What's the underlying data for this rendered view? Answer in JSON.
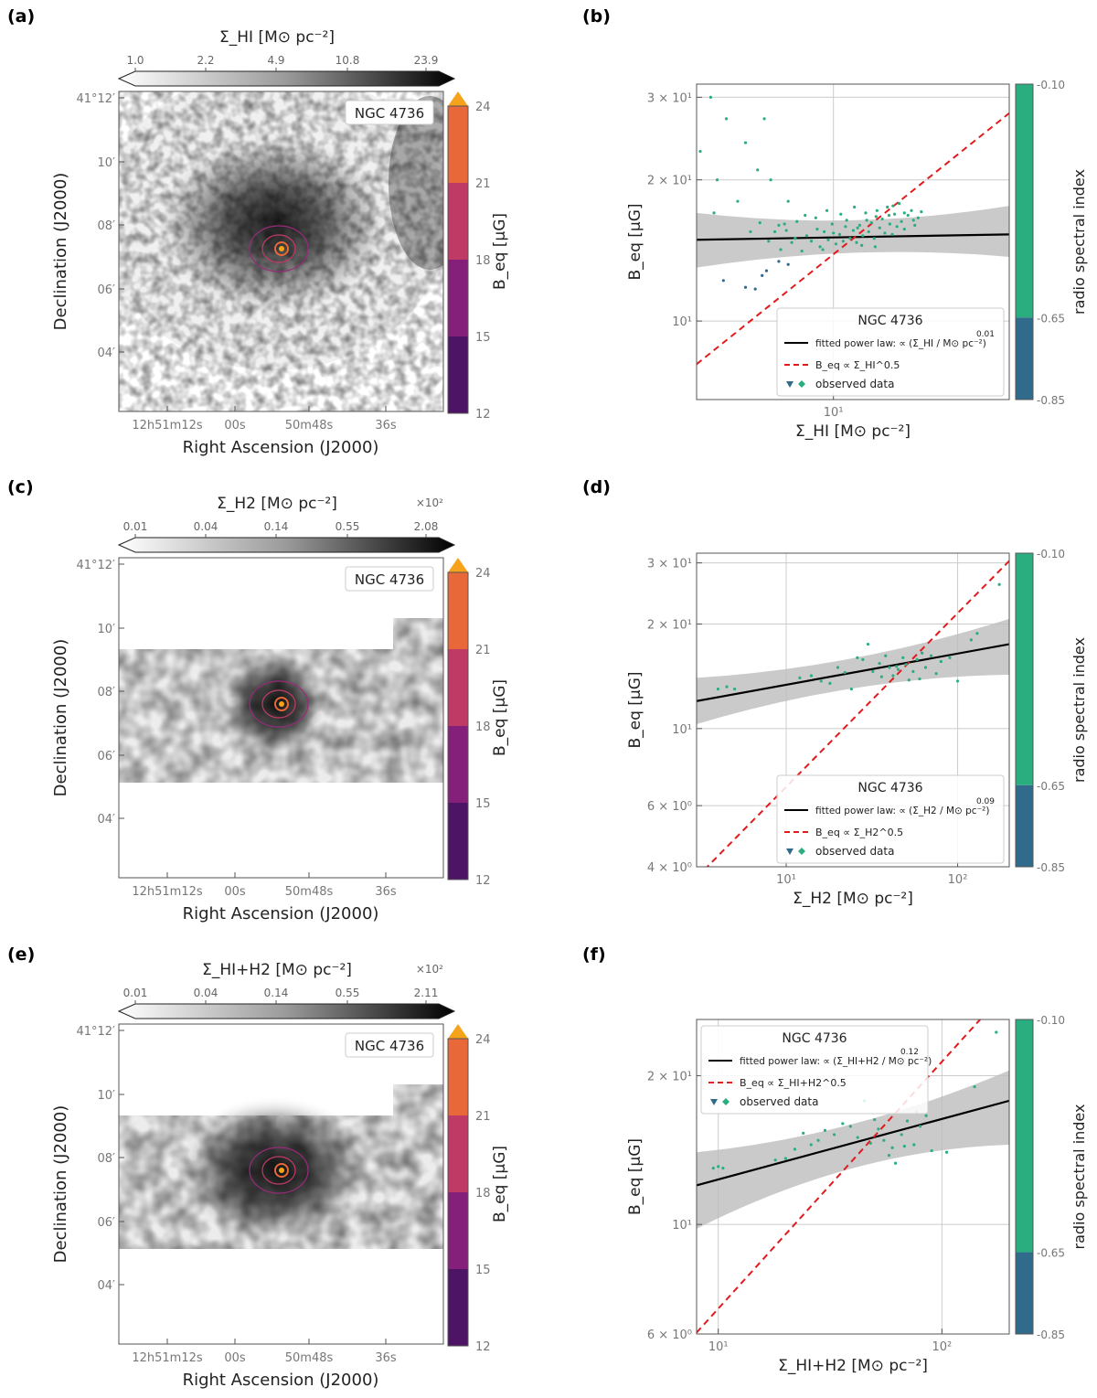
{
  "figure": {
    "panel_labels": [
      "(a)",
      "(b)",
      "(c)",
      "(d)",
      "(e)",
      "(f)"
    ],
    "galaxy": "NGC 4736",
    "map_axes": {
      "xlabel": "Right Ascension (J2000)",
      "ylabel": "Declination (J2000)",
      "ra_ticks": [
        "12h51m12s",
        "00s",
        "50m48s",
        "36s"
      ],
      "dec_ticks": [
        "41°12′",
        "10′",
        "08′",
        "06′",
        "04′"
      ]
    },
    "beq_colorbar": {
      "label": "B_eq [μG]",
      "ticks": [
        "24",
        "21",
        "18",
        "15",
        "12"
      ],
      "colors": [
        "#f7a21b",
        "#e8683a",
        "#c03a66",
        "#85207a",
        "#4d1466"
      ]
    },
    "spectral_colorbar": {
      "label": "radio spectral index",
      "ticks": [
        "-0.10",
        "-0.65",
        "-0.85"
      ],
      "colors": [
        "#2aae7f",
        "#316b8c"
      ]
    },
    "legend_common": {
      "fit": "fitted power law:",
      "obs": "observed data"
    }
  },
  "maps": [
    {
      "label": "Σ_HI [M⊙ pc⁻²]",
      "ticks": [
        "1.0",
        "2.2",
        "4.9",
        "10.8",
        "23.9"
      ],
      "multiplier": ""
    },
    {
      "label": "Σ_H2 [M⊙ pc⁻²]",
      "ticks": [
        "0.01",
        "0.04",
        "0.14",
        "0.55",
        "2.08"
      ],
      "multiplier": "×10²"
    },
    {
      "label": "Σ_HI+H2 [M⊙ pc⁻²]",
      "ticks": [
        "0.01",
        "0.04",
        "0.14",
        "0.55",
        "2.11"
      ],
      "multiplier": "×10²"
    }
  ],
  "chart_data": [
    {
      "type": "scatter",
      "panel": "b",
      "title": "NGC 4736",
      "xlabel": "Σ_HI [M⊙ pc⁻²]",
      "ylabel": "B_eq [μG]",
      "xscale": "log",
      "yscale": "log",
      "xlim": [
        3.4,
        40
      ],
      "ylim": [
        6.8,
        32
      ],
      "xticks": [
        {
          "v": 10,
          "label": "10¹"
        }
      ],
      "yticks": [
        {
          "v": 10,
          "label": "10¹"
        },
        {
          "v": 20,
          "label": "2 × 10¹"
        },
        {
          "v": 30,
          "label": "3 × 10¹"
        }
      ],
      "fit": {
        "exponent": "0.01",
        "y_at_xmin": 14.9,
        "y_at_xmax": 15.3,
        "band_low": [
          13.0,
          13.7
        ],
        "band_high": [
          17.0,
          17.6
        ]
      },
      "ref_exponent": 0.5,
      "ref_point": [
        12.0,
        15.2
      ],
      "ref_label": "B_eq ∝ Σ_HI^0.5",
      "fit_unit": "Σ_HI / M⊙ pc⁻²",
      "legend_pos": "lower-center",
      "points_steep": [
        [
          4.2,
          12.2
        ],
        [
          5.0,
          11.8
        ],
        [
          5.4,
          11.7
        ],
        [
          5.7,
          12.5
        ],
        [
          5.9,
          12.8
        ],
        [
          6.5,
          13.4
        ],
        [
          7.0,
          13.2
        ]
      ],
      "points_flat": [
        [
          3.5,
          23
        ],
        [
          3.8,
          30
        ],
        [
          4.0,
          20
        ],
        [
          4.3,
          27
        ],
        [
          4.7,
          18
        ],
        [
          5.0,
          24
        ],
        [
          5.5,
          21
        ],
        [
          5.8,
          27
        ],
        [
          6.1,
          20
        ],
        [
          6.5,
          16
        ],
        [
          7.0,
          18
        ],
        [
          3.9,
          17
        ],
        [
          5.2,
          15.5
        ],
        [
          5.6,
          16.2
        ],
        [
          6.0,
          14.8
        ],
        [
          6.3,
          15.5
        ],
        [
          6.6,
          14.2
        ],
        [
          6.9,
          15.6
        ],
        [
          7.2,
          14.7
        ],
        [
          7.5,
          16.3
        ],
        [
          7.8,
          14.1
        ],
        [
          8.1,
          15.2
        ],
        [
          8.4,
          14.8
        ],
        [
          8.7,
          16.6
        ],
        [
          9.0,
          14.4
        ],
        [
          9.3,
          15.5
        ],
        [
          9.6,
          14.9
        ],
        [
          9.9,
          16.1
        ],
        [
          10.2,
          14.6
        ],
        [
          10.5,
          15.3
        ],
        [
          10.8,
          14.8
        ],
        [
          11.1,
          16.4
        ],
        [
          11.4,
          15.0
        ],
        [
          11.7,
          15.6
        ],
        [
          12.0,
          14.7
        ],
        [
          12.3,
          16.0
        ],
        [
          12.6,
          15.2
        ],
        [
          12.9,
          17.0
        ],
        [
          13.2,
          15.5
        ],
        [
          13.5,
          16.2
        ],
        [
          13.8,
          15.0
        ],
        [
          14.1,
          17.2
        ],
        [
          14.4,
          15.8
        ],
        [
          14.7,
          16.5
        ],
        [
          15.0,
          15.4
        ],
        [
          15.3,
          17.5
        ],
        [
          15.6,
          16.1
        ],
        [
          15.9,
          15.3
        ],
        [
          16.2,
          16.9
        ],
        [
          16.5,
          15.9
        ],
        [
          16.8,
          17.8
        ],
        [
          17.1,
          16.3
        ],
        [
          17.5,
          15.7
        ],
        [
          18.0,
          16.8
        ],
        [
          18.5,
          17.2
        ],
        [
          19.0,
          16.0
        ],
        [
          19.5,
          16.6
        ],
        [
          20.0,
          17.1
        ],
        [
          8.0,
          16.8
        ],
        [
          9.5,
          17.2
        ],
        [
          11.0,
          15.9
        ],
        [
          12.5,
          14.5
        ],
        [
          14.0,
          16.7
        ],
        [
          7.4,
          15.0
        ],
        [
          8.8,
          15.7
        ],
        [
          10.0,
          15.4
        ],
        [
          11.8,
          17.5
        ],
        [
          13.0,
          16.4
        ],
        [
          15.5,
          16.8
        ],
        [
          17.5,
          17.0
        ],
        [
          6.8,
          16.1
        ],
        [
          9.2,
          14.2
        ],
        [
          10.6,
          16.9
        ],
        [
          12.1,
          15.8
        ],
        [
          13.9,
          14.4
        ],
        [
          16.0,
          17.6
        ],
        [
          18.8,
          16.4
        ]
      ]
    },
    {
      "type": "scatter",
      "panel": "d",
      "title": "NGC 4736",
      "xlabel": "Σ_H2 [M⊙ pc⁻²]",
      "ylabel": "B_eq [μG]",
      "xscale": "log",
      "yscale": "log",
      "xlim": [
        3,
        200
      ],
      "ylim": [
        4,
        32
      ],
      "xticks": [
        {
          "v": 10,
          "label": "10¹"
        },
        {
          "v": 100,
          "label": "10²"
        }
      ],
      "yticks": [
        {
          "v": 4,
          "label": "4 × 10⁰"
        },
        {
          "v": 6,
          "label": "6 × 10⁰"
        },
        {
          "v": 10,
          "label": "10¹"
        },
        {
          "v": 20,
          "label": "2 × 10¹"
        },
        {
          "v": 30,
          "label": "3 × 10¹"
        }
      ],
      "fit": {
        "exponent": "0.09",
        "y_at_xmin": 12.0,
        "y_at_xmax": 17.5,
        "band_low": [
          10.3,
          14.3
        ],
        "band_high": [
          14.0,
          20.7
        ]
      },
      "ref_exponent": 0.5,
      "ref_point": [
        50.0,
        15.2
      ],
      "ref_label": "B_eq ∝ Σ_H2^0.5",
      "fit_unit": "Σ_H2 / M⊙ pc⁻²",
      "legend_pos": "lower-center",
      "points_steep": [],
      "points_flat": [
        [
          4,
          13
        ],
        [
          4.5,
          13.2
        ],
        [
          5,
          13
        ],
        [
          12,
          14
        ],
        [
          14,
          14.2
        ],
        [
          16,
          13.7
        ],
        [
          18,
          13.5
        ],
        [
          20,
          15
        ],
        [
          22,
          14.5
        ],
        [
          24,
          13
        ],
        [
          26,
          16
        ],
        [
          28,
          15.8
        ],
        [
          30,
          17.5
        ],
        [
          32,
          14.6
        ],
        [
          35,
          15.4
        ],
        [
          38,
          16.2
        ],
        [
          40,
          15
        ],
        [
          42,
          14.2
        ],
        [
          45,
          14.8
        ],
        [
          48,
          16
        ],
        [
          50,
          15.3
        ],
        [
          52,
          13.8
        ],
        [
          55,
          14.6
        ],
        [
          58,
          15.8
        ],
        [
          60,
          13.9
        ],
        [
          65,
          15
        ],
        [
          70,
          16.2
        ],
        [
          75,
          14.4
        ],
        [
          80,
          15.6
        ],
        [
          90,
          16
        ],
        [
          100,
          13.7
        ],
        [
          120,
          18
        ],
        [
          130,
          18.8
        ],
        [
          175,
          26
        ],
        [
          36,
          14.1
        ],
        [
          44,
          15.1
        ],
        [
          62,
          16.5
        ]
      ]
    },
    {
      "type": "scatter",
      "panel": "f",
      "title": "NGC 4736",
      "xlabel": "Σ_HI+H2 [M⊙ pc⁻²]",
      "ylabel": "B_eq [μG]",
      "xscale": "log",
      "yscale": "log",
      "xlim": [
        8,
        200
      ],
      "ylim": [
        6,
        26
      ],
      "xticks": [
        {
          "v": 10,
          "label": "10¹"
        },
        {
          "v": 100,
          "label": "10²"
        }
      ],
      "yticks": [
        {
          "v": 6,
          "label": "6 × 10⁰"
        },
        {
          "v": 10,
          "label": "10¹"
        },
        {
          "v": 20,
          "label": "2 × 10¹"
        }
      ],
      "fit": {
        "exponent": "0.12",
        "y_at_xmin": 12.0,
        "y_at_xmax": 17.8,
        "band_low": [
          9.8,
          14.5
        ],
        "band_high": [
          14.0,
          20.5
        ]
      },
      "ref_exponent": 0.5,
      "ref_point": [
        50.0,
        15.1
      ],
      "ref_label": "B_eq ∝ Σ_HI+H2^0.5",
      "fit_unit": "Σ_HI+H2 / M⊙ pc⁻²",
      "legend_pos": "upper-left",
      "points_steep": [],
      "points_flat": [
        [
          9.5,
          13
        ],
        [
          10,
          13.1
        ],
        [
          10.5,
          13
        ],
        [
          18,
          13.5
        ],
        [
          20,
          13.6
        ],
        [
          22,
          14.2
        ],
        [
          24,
          15.3
        ],
        [
          26,
          14.5
        ],
        [
          28,
          14.8
        ],
        [
          30,
          15.5
        ],
        [
          33,
          15.2
        ],
        [
          36,
          16
        ],
        [
          39,
          15.8
        ],
        [
          42,
          15
        ],
        [
          45,
          17.8
        ],
        [
          48,
          14.6
        ],
        [
          52,
          15.6
        ],
        [
          55,
          14.8
        ],
        [
          58,
          13.8
        ],
        [
          60,
          14.3
        ],
        [
          62,
          13.3
        ],
        [
          66,
          15.2
        ],
        [
          70,
          16.2
        ],
        [
          75,
          14.5
        ],
        [
          80,
          15.8
        ],
        [
          85,
          16.6
        ],
        [
          90,
          14.1
        ],
        [
          105,
          14
        ],
        [
          140,
          19
        ],
        [
          175,
          24.5
        ],
        [
          50,
          16.3
        ],
        [
          68,
          14.4
        ],
        [
          77,
          16.9
        ]
      ]
    }
  ]
}
